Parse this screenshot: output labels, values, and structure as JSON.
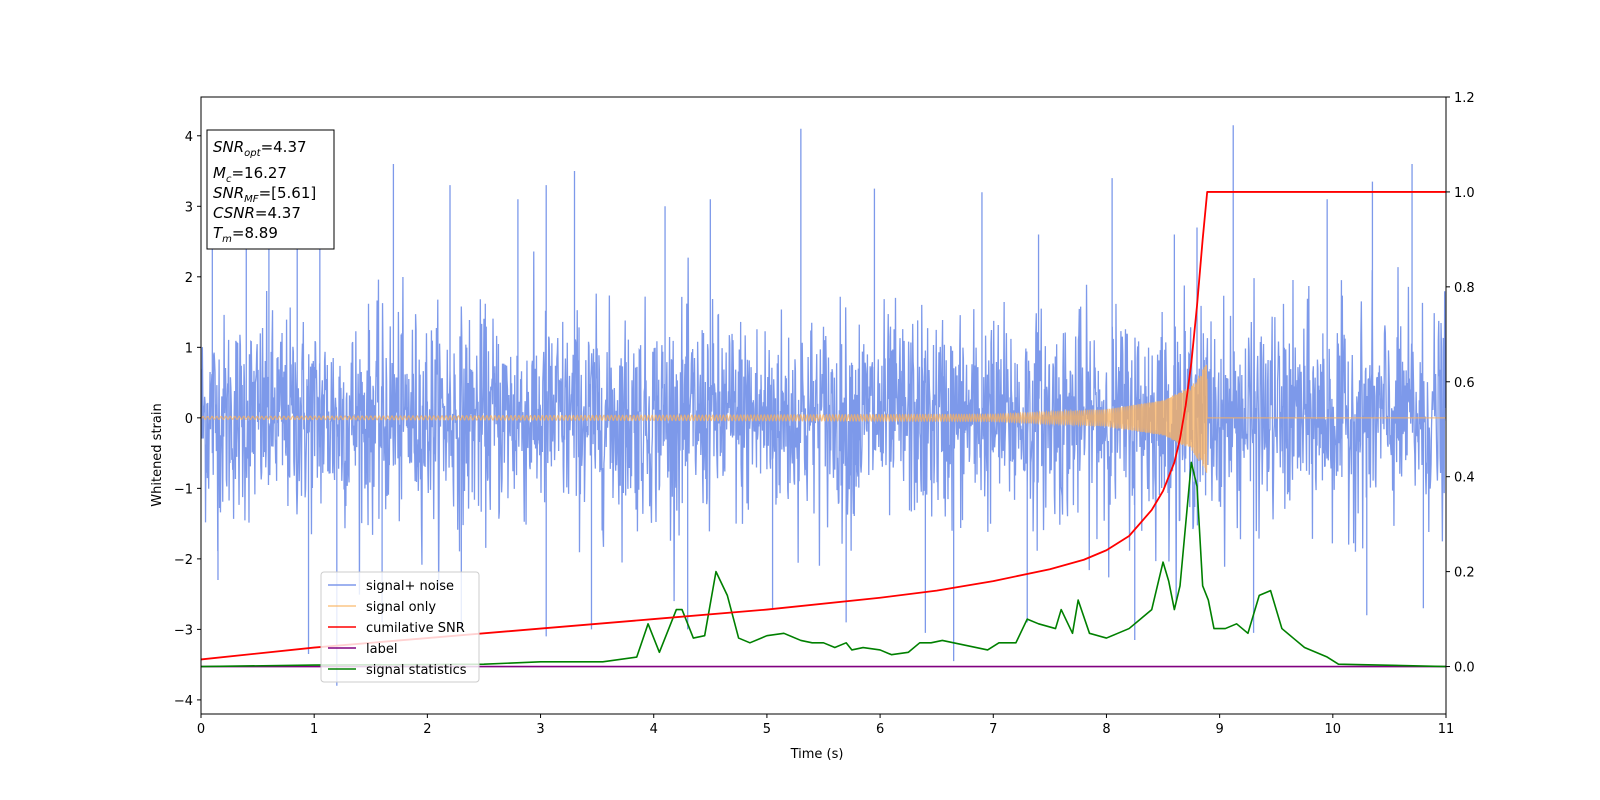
{
  "chart_data": {
    "type": "line",
    "xlabel": "Time (s)",
    "ylabel": "Whitened strain",
    "xlim": [
      0,
      11
    ],
    "ylim_left": [
      -4.2,
      4.55
    ],
    "ylim_right": [
      -0.1,
      1.2
    ],
    "x_ticks": [
      0,
      1,
      2,
      3,
      4,
      5,
      6,
      7,
      8,
      9,
      10,
      11
    ],
    "y_ticks_left": [
      4,
      3,
      2,
      1,
      0,
      -1,
      -2,
      -3,
      -4
    ],
    "y_ticks_right": [
      1.2,
      1.0,
      0.8,
      0.6,
      0.4,
      0.2,
      0.0
    ],
    "y_tick_labels_left": [
      "4",
      "3",
      "2",
      "1",
      "0",
      "−1",
      "−2",
      "−3",
      "−4"
    ],
    "y_tick_labels_right": [
      "1.2",
      "1.0",
      "0.8",
      "0.6",
      "0.4",
      "0.2",
      "0.0"
    ],
    "grid": false,
    "legend_position": "lower-left",
    "annotation": {
      "lines": [
        {
          "main": "SNR",
          "sub": "opt",
          "value": "=4.37"
        },
        {
          "main": "M",
          "sub": "c",
          "value": "=16.27"
        },
        {
          "main": "SNR",
          "sub": "MF",
          "value": "=[5.61]"
        },
        {
          "main": "CSNR",
          "sub": "",
          "value": "=4.37"
        },
        {
          "main": "T",
          "sub": "m",
          "value": "=8.89"
        }
      ]
    },
    "series": [
      {
        "name": "signal+ noise",
        "color": "#6f8ee8",
        "axis": "left",
        "kind": "noise band",
        "x_range": [
          0,
          11
        ],
        "band_core": [
          -1.6,
          1.7
        ],
        "peak_x": [
          0.1,
          0.4,
          0.6,
          0.85,
          1.05,
          1.7,
          2.2,
          2.8,
          3.05,
          3.3,
          4.1,
          4.5,
          5.3,
          5.95,
          6.9,
          7.4,
          8.05,
          8.6,
          8.8,
          9.12,
          9.95,
          10.35,
          10.7
        ],
        "peak_y": [
          3.3,
          2.9,
          3.1,
          2.9,
          2.6,
          3.6,
          3.3,
          3.1,
          3.3,
          3.5,
          3.0,
          3.1,
          4.1,
          3.25,
          3.2,
          2.6,
          3.4,
          2.6,
          2.7,
          4.15,
          3.1,
          3.35,
          3.6
        ],
        "trough_x": [
          0.15,
          0.95,
          1.2,
          1.6,
          2.3,
          3.05,
          3.45,
          4.3,
          5.05,
          5.7,
          6.4,
          6.65,
          7.3,
          8.25,
          9.3,
          10.3,
          10.8
        ],
        "trough_y": [
          -2.3,
          -3.35,
          -3.8,
          -2.9,
          -3.0,
          -3.1,
          -3.0,
          -3.0,
          -2.7,
          -2.9,
          -3.05,
          -3.45,
          -2.9,
          -3.15,
          -3.05,
          -2.8,
          -2.7
        ]
      },
      {
        "name": "signal only",
        "color": "#fbb25e",
        "axis": "left",
        "kind": "chirp",
        "x_range": [
          0,
          8.89
        ],
        "amplitude": [
          [
            0,
            0.02
          ],
          [
            7.0,
            0.05
          ],
          [
            8.0,
            0.12
          ],
          [
            8.5,
            0.25
          ],
          [
            8.75,
            0.45
          ],
          [
            8.89,
            0.8
          ]
        ]
      },
      {
        "name": "cumilative SNR",
        "color": "#ff0000",
        "axis": "right",
        "x": [
          0,
          1,
          2,
          3,
          4,
          5,
          6,
          6.5,
          7,
          7.5,
          7.8,
          8.0,
          8.2,
          8.4,
          8.5,
          8.6,
          8.65,
          8.7,
          8.75,
          8.8,
          8.85,
          8.89,
          9.0,
          10.0,
          11.0
        ],
        "values": [
          0.015,
          0.04,
          0.06,
          0.08,
          0.1,
          0.12,
          0.145,
          0.16,
          0.18,
          0.205,
          0.225,
          0.245,
          0.275,
          0.33,
          0.37,
          0.43,
          0.48,
          0.55,
          0.64,
          0.76,
          0.9,
          1.0,
          1.0,
          1.0,
          1.0
        ]
      },
      {
        "name": "label",
        "color": "#800080",
        "axis": "right",
        "x": [
          0,
          11
        ],
        "values": [
          0,
          0
        ]
      },
      {
        "name": "signal statistics",
        "color": "#008000",
        "axis": "right",
        "x": [
          0,
          1.0,
          2.5,
          3.0,
          3.4,
          3.55,
          3.85,
          3.95,
          4.05,
          4.1,
          4.2,
          4.25,
          4.35,
          4.45,
          4.55,
          4.65,
          4.75,
          4.85,
          5.0,
          5.15,
          5.3,
          5.4,
          5.5,
          5.6,
          5.7,
          5.75,
          5.85,
          6.0,
          6.1,
          6.25,
          6.35,
          6.45,
          6.55,
          6.65,
          6.75,
          6.85,
          6.95,
          7.05,
          7.2,
          7.3,
          7.4,
          7.55,
          7.6,
          7.7,
          7.75,
          7.85,
          8.0,
          8.1,
          8.2,
          8.3,
          8.4,
          8.5,
          8.55,
          8.6,
          8.65,
          8.7,
          8.75,
          8.8,
          8.85,
          8.9,
          8.95,
          9.05,
          9.15,
          9.25,
          9.35,
          9.45,
          9.55,
          9.65,
          9.75,
          9.85,
          9.95,
          10.05,
          11.0
        ],
        "values": [
          0,
          0.003,
          0.005,
          0.01,
          0.01,
          0.01,
          0.02,
          0.09,
          0.03,
          0.06,
          0.12,
          0.12,
          0.06,
          0.065,
          0.2,
          0.15,
          0.06,
          0.05,
          0.065,
          0.07,
          0.055,
          0.05,
          0.05,
          0.04,
          0.05,
          0.035,
          0.04,
          0.035,
          0.025,
          0.03,
          0.05,
          0.05,
          0.055,
          0.05,
          0.045,
          0.04,
          0.035,
          0.05,
          0.05,
          0.1,
          0.09,
          0.08,
          0.12,
          0.07,
          0.14,
          0.07,
          0.06,
          0.07,
          0.08,
          0.1,
          0.12,
          0.22,
          0.18,
          0.12,
          0.17,
          0.3,
          0.43,
          0.38,
          0.17,
          0.14,
          0.08,
          0.08,
          0.09,
          0.07,
          0.15,
          0.16,
          0.08,
          0.06,
          0.04,
          0.03,
          0.02,
          0.005,
          0
        ]
      }
    ]
  }
}
